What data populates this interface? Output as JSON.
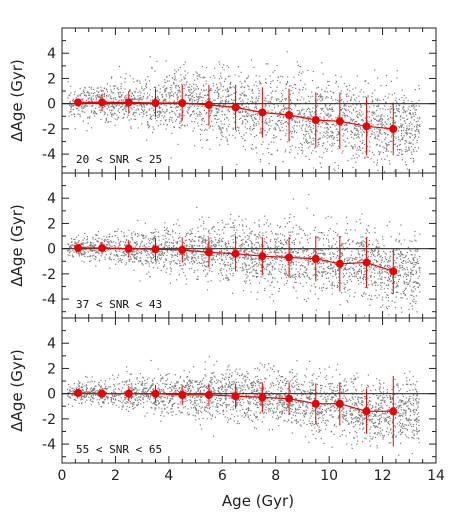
{
  "chart_data": {
    "type": "scatter",
    "xlabel": "Age (Gyr)",
    "ylabel": "ΔAge (Gyr)",
    "xlim": [
      0,
      14
    ],
    "ylim": [
      -5.5,
      6
    ],
    "x_ticks": [
      0,
      2,
      4,
      6,
      8,
      10,
      12,
      14
    ],
    "y_ticks": [
      -4,
      -2,
      0,
      2,
      4
    ],
    "reference_line_y": 0,
    "colors": {
      "scatter": "#7a7a7a",
      "binned": "#ee0000",
      "zero_line": "#444444"
    },
    "panels": [
      {
        "annotation": "20 < SNR < 25",
        "binned_x": [
          0.6,
          1.5,
          2.5,
          3.5,
          4.5,
          5.5,
          6.5,
          7.5,
          8.5,
          9.5,
          10.4,
          11.4,
          12.4
        ],
        "binned_y": [
          0.1,
          0.1,
          0.1,
          0.05,
          0.05,
          -0.1,
          -0.3,
          -0.7,
          -0.9,
          -1.3,
          -1.4,
          -1.8,
          -2.0
        ],
        "error": [
          0.3,
          0.7,
          0.9,
          1.1,
          1.4,
          1.6,
          1.8,
          2.0,
          2.1,
          2.2,
          2.2,
          2.3,
          2.1
        ],
        "scatter_spread": [
          1.2,
          1.6,
          2.0,
          2.4,
          2.7,
          2.9,
          3.0,
          3.1,
          3.2,
          3.2,
          3.3,
          3.3,
          3.2
        ]
      },
      {
        "annotation": "37 < SNR < 43",
        "binned_x": [
          0.6,
          1.5,
          2.5,
          3.5,
          4.5,
          5.5,
          6.5,
          7.5,
          8.5,
          9.5,
          10.4,
          11.4,
          12.4
        ],
        "binned_y": [
          0.05,
          0.05,
          0.0,
          -0.05,
          -0.1,
          -0.3,
          -0.4,
          -0.6,
          -0.7,
          -0.8,
          -1.2,
          -1.1,
          -1.8
        ],
        "error": [
          0.2,
          0.5,
          0.7,
          0.9,
          1.0,
          1.2,
          1.4,
          1.5,
          1.6,
          1.8,
          2.2,
          2.0,
          1.8
        ],
        "scatter_spread": [
          0.9,
          1.2,
          1.5,
          1.8,
          2.0,
          2.2,
          2.4,
          2.5,
          2.6,
          2.7,
          2.8,
          2.8,
          2.8
        ]
      },
      {
        "annotation": "55 < SNR < 65",
        "binned_x": [
          0.6,
          1.5,
          2.5,
          3.5,
          4.5,
          5.5,
          6.5,
          7.5,
          8.5,
          9.5,
          10.4,
          11.4,
          12.4
        ],
        "binned_y": [
          0.05,
          0.0,
          0.0,
          0.0,
          -0.1,
          -0.1,
          -0.2,
          -0.3,
          -0.4,
          -0.8,
          -0.8,
          -1.4,
          -1.4
        ],
        "error": [
          0.2,
          0.4,
          0.6,
          0.7,
          0.8,
          0.9,
          1.0,
          1.2,
          1.3,
          1.6,
          1.7,
          1.8,
          2.8
        ],
        "scatter_spread": [
          0.8,
          1.1,
          1.3,
          1.5,
          1.7,
          1.9,
          2.0,
          2.1,
          2.2,
          2.3,
          2.4,
          2.4,
          2.4
        ]
      }
    ]
  }
}
